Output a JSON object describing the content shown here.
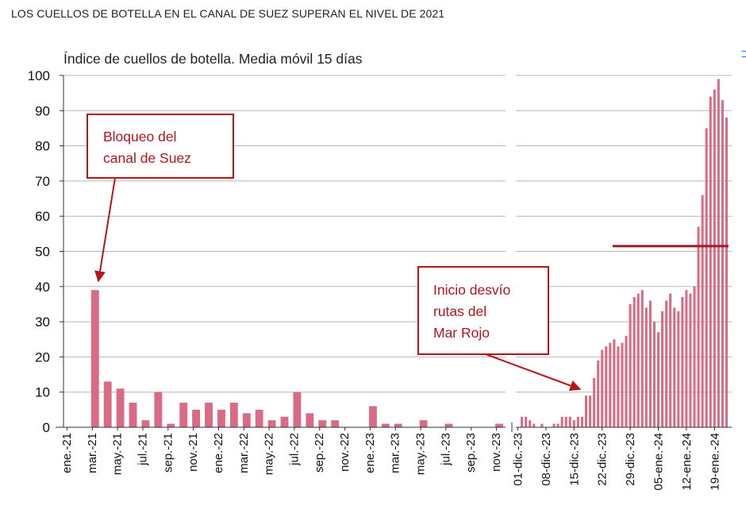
{
  "page": {
    "title": "LOS CUELLOS DE BOTELLA EN EL CANAL DE SUEZ SUPERAN EL NIVEL DE 2021"
  },
  "chart_data": {
    "type": "bar",
    "subtitle": "Índice de cuellos de botella. Media móvil 15 días",
    "ylim": [
      0,
      100
    ],
    "yticks": [
      0,
      10,
      20,
      30,
      40,
      50,
      60,
      70,
      80,
      90,
      100
    ],
    "grid": true,
    "bar_color": "#d96b84",
    "annotation_color": "#b5151c",
    "left_panel": {
      "xticks": [
        "ene.-21",
        "mar.-21",
        "may.-21",
        "jul.-21",
        "sep.-21",
        "nov.-21",
        "ene.-22",
        "mar.-22",
        "may.-22",
        "jul.-22",
        "sep.-22",
        "nov.-22",
        "ene.-23",
        "mar.-23",
        "may.-23",
        "jul.-23",
        "sep.-23",
        "nov.-23"
      ],
      "values": [
        0,
        0,
        39,
        13,
        11,
        7,
        2,
        10,
        1,
        7,
        5,
        7,
        5,
        7,
        4,
        5,
        2,
        3,
        10,
        4,
        2,
        2,
        0,
        0,
        6,
        1,
        1,
        0,
        2,
        0,
        1,
        0,
        0,
        0,
        1
      ]
    },
    "right_panel": {
      "xticks": [
        "01-dic.-23",
        "08-dic.-23",
        "15-dic.-23",
        "22-dic.-23",
        "29-dic.-23",
        "05-ene.-24",
        "12-ene.-24",
        "19-ene.-24"
      ],
      "values": [
        0,
        3,
        3,
        2,
        1,
        0,
        1,
        0,
        0,
        1,
        1,
        3,
        3,
        3,
        2,
        3,
        3,
        9,
        9,
        14,
        19,
        22,
        23,
        24,
        25,
        23,
        24,
        26,
        35,
        37,
        38,
        39,
        34,
        36,
        30,
        27,
        33,
        36,
        38,
        34,
        33,
        37,
        39,
        38,
        40,
        57,
        66,
        85,
        94,
        96,
        99,
        93,
        88
      ],
      "reference_line": 51.5
    },
    "annotations": [
      {
        "lines": [
          "Bloqueo del",
          "canal de Suez"
        ]
      },
      {
        "lines": [
          "Inicio desvío",
          "rutas del",
          "Mar Rojo"
        ]
      }
    ]
  },
  "icons": {
    "edge": "bracket-icon"
  }
}
